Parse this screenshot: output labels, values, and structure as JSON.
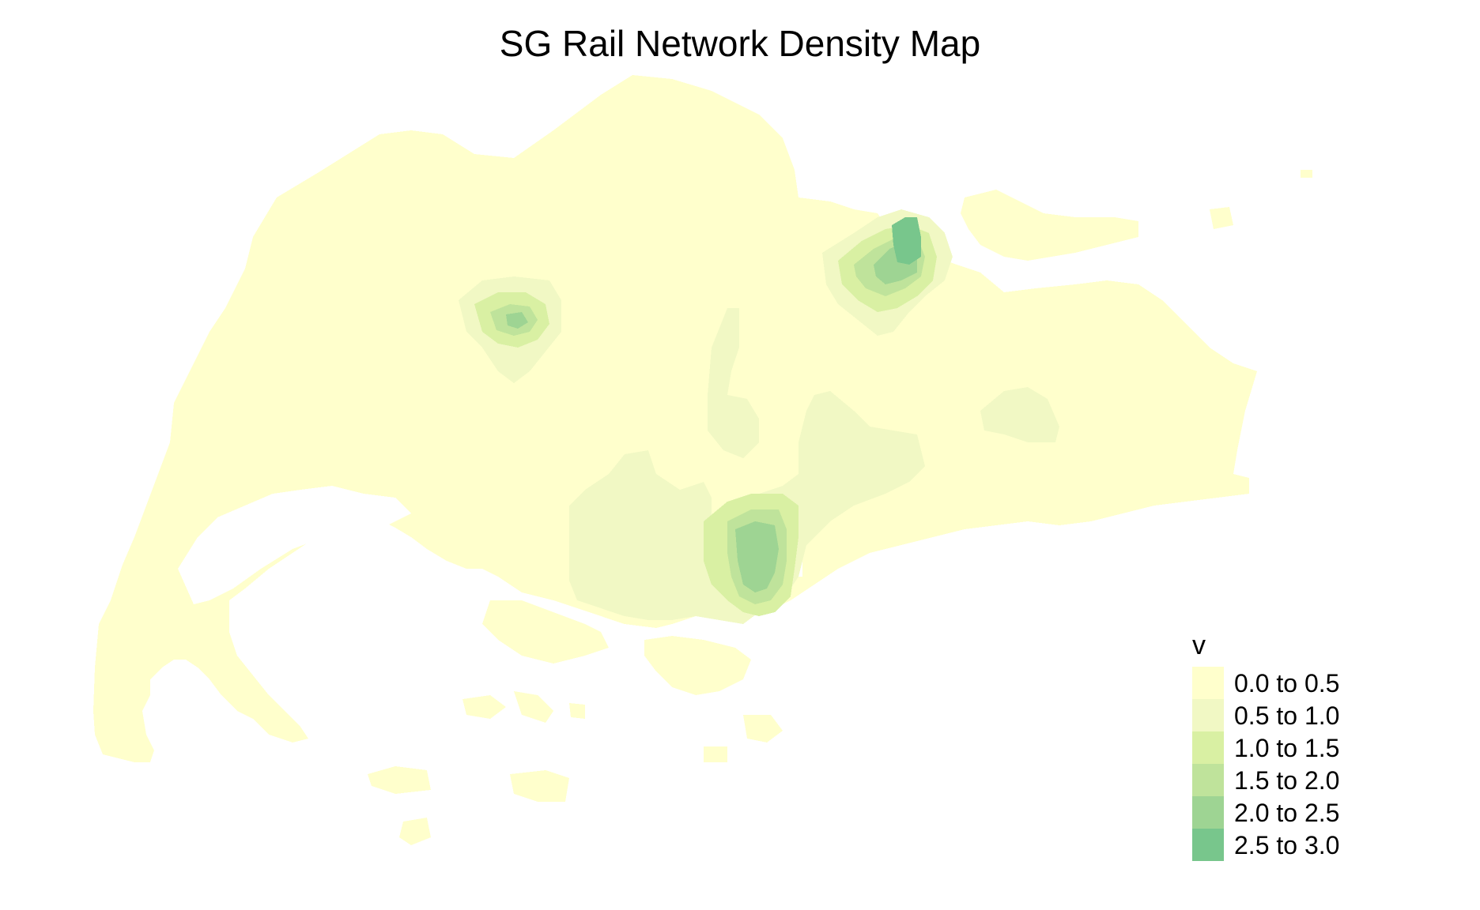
{
  "title": "SG Rail Network Density Map",
  "legend": {
    "title": "v",
    "items": [
      {
        "label": "0.0 to 0.5",
        "color": "#ffffcc"
      },
      {
        "label": "0.5 to 1.0",
        "color": "#f1f8c4"
      },
      {
        "label": "1.0 to 1.5",
        "color": "#d9f0a3"
      },
      {
        "label": "1.5 to 2.0",
        "color": "#bfe39b"
      },
      {
        "label": "2.0 to 2.5",
        "color": "#9ed493"
      },
      {
        "label": "2.5 to 3.0",
        "color": "#78c68c"
      }
    ]
  },
  "colors": {
    "background": "#ffffff",
    "water": "#ffffff"
  }
}
